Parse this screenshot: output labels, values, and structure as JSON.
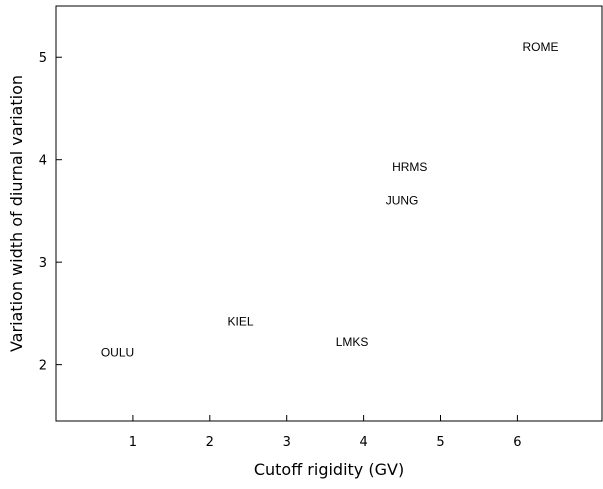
{
  "chart_data": {
    "type": "scatter",
    "title": "",
    "xlabel": "Cutoff rigidity (GV)",
    "ylabel": "Variation width of diurnal variation",
    "xlim": [
      0,
      7.1
    ],
    "ylim": [
      1.45,
      5.5
    ],
    "xticks": [
      1,
      2,
      3,
      4,
      5,
      6
    ],
    "yticks": [
      2,
      3,
      4,
      5
    ],
    "grid": false,
    "legend": "none",
    "points": [
      {
        "label": "OULU",
        "x": 0.8,
        "y": 2.12
      },
      {
        "label": "KIEL",
        "x": 2.4,
        "y": 2.42
      },
      {
        "label": "LMKS",
        "x": 3.85,
        "y": 2.22
      },
      {
        "label": "JUNG",
        "x": 4.5,
        "y": 3.6
      },
      {
        "label": "HRMS",
        "x": 4.6,
        "y": 3.93
      },
      {
        "label": "ROME",
        "x": 6.3,
        "y": 5.1
      }
    ]
  }
}
